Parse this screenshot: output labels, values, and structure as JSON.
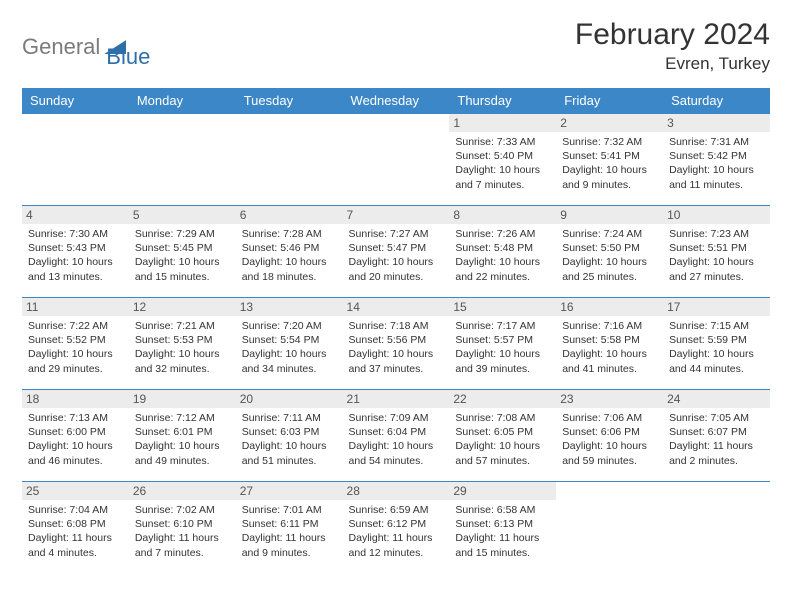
{
  "logo": {
    "part1": "General",
    "part2": "Blue"
  },
  "title": "February 2024",
  "location": "Evren, Turkey",
  "colors": {
    "header_bg": "#3c87c7",
    "header_text": "#ffffff",
    "daynum_bg": "#ececec",
    "border": "#3c87c7",
    "logo_gray": "#7b7b7b",
    "logo_blue": "#2f6fa8"
  },
  "dow": [
    "Sunday",
    "Monday",
    "Tuesday",
    "Wednesday",
    "Thursday",
    "Friday",
    "Saturday"
  ],
  "weeks": [
    [
      {
        "n": "",
        "sr": "",
        "ss": "",
        "dl": ""
      },
      {
        "n": "",
        "sr": "",
        "ss": "",
        "dl": ""
      },
      {
        "n": "",
        "sr": "",
        "ss": "",
        "dl": ""
      },
      {
        "n": "",
        "sr": "",
        "ss": "",
        "dl": ""
      },
      {
        "n": "1",
        "sr": "Sunrise: 7:33 AM",
        "ss": "Sunset: 5:40 PM",
        "dl": "Daylight: 10 hours and 7 minutes."
      },
      {
        "n": "2",
        "sr": "Sunrise: 7:32 AM",
        "ss": "Sunset: 5:41 PM",
        "dl": "Daylight: 10 hours and 9 minutes."
      },
      {
        "n": "3",
        "sr": "Sunrise: 7:31 AM",
        "ss": "Sunset: 5:42 PM",
        "dl": "Daylight: 10 hours and 11 minutes."
      }
    ],
    [
      {
        "n": "4",
        "sr": "Sunrise: 7:30 AM",
        "ss": "Sunset: 5:43 PM",
        "dl": "Daylight: 10 hours and 13 minutes."
      },
      {
        "n": "5",
        "sr": "Sunrise: 7:29 AM",
        "ss": "Sunset: 5:45 PM",
        "dl": "Daylight: 10 hours and 15 minutes."
      },
      {
        "n": "6",
        "sr": "Sunrise: 7:28 AM",
        "ss": "Sunset: 5:46 PM",
        "dl": "Daylight: 10 hours and 18 minutes."
      },
      {
        "n": "7",
        "sr": "Sunrise: 7:27 AM",
        "ss": "Sunset: 5:47 PM",
        "dl": "Daylight: 10 hours and 20 minutes."
      },
      {
        "n": "8",
        "sr": "Sunrise: 7:26 AM",
        "ss": "Sunset: 5:48 PM",
        "dl": "Daylight: 10 hours and 22 minutes."
      },
      {
        "n": "9",
        "sr": "Sunrise: 7:24 AM",
        "ss": "Sunset: 5:50 PM",
        "dl": "Daylight: 10 hours and 25 minutes."
      },
      {
        "n": "10",
        "sr": "Sunrise: 7:23 AM",
        "ss": "Sunset: 5:51 PM",
        "dl": "Daylight: 10 hours and 27 minutes."
      }
    ],
    [
      {
        "n": "11",
        "sr": "Sunrise: 7:22 AM",
        "ss": "Sunset: 5:52 PM",
        "dl": "Daylight: 10 hours and 29 minutes."
      },
      {
        "n": "12",
        "sr": "Sunrise: 7:21 AM",
        "ss": "Sunset: 5:53 PM",
        "dl": "Daylight: 10 hours and 32 minutes."
      },
      {
        "n": "13",
        "sr": "Sunrise: 7:20 AM",
        "ss": "Sunset: 5:54 PM",
        "dl": "Daylight: 10 hours and 34 minutes."
      },
      {
        "n": "14",
        "sr": "Sunrise: 7:18 AM",
        "ss": "Sunset: 5:56 PM",
        "dl": "Daylight: 10 hours and 37 minutes."
      },
      {
        "n": "15",
        "sr": "Sunrise: 7:17 AM",
        "ss": "Sunset: 5:57 PM",
        "dl": "Daylight: 10 hours and 39 minutes."
      },
      {
        "n": "16",
        "sr": "Sunrise: 7:16 AM",
        "ss": "Sunset: 5:58 PM",
        "dl": "Daylight: 10 hours and 41 minutes."
      },
      {
        "n": "17",
        "sr": "Sunrise: 7:15 AM",
        "ss": "Sunset: 5:59 PM",
        "dl": "Daylight: 10 hours and 44 minutes."
      }
    ],
    [
      {
        "n": "18",
        "sr": "Sunrise: 7:13 AM",
        "ss": "Sunset: 6:00 PM",
        "dl": "Daylight: 10 hours and 46 minutes."
      },
      {
        "n": "19",
        "sr": "Sunrise: 7:12 AM",
        "ss": "Sunset: 6:01 PM",
        "dl": "Daylight: 10 hours and 49 minutes."
      },
      {
        "n": "20",
        "sr": "Sunrise: 7:11 AM",
        "ss": "Sunset: 6:03 PM",
        "dl": "Daylight: 10 hours and 51 minutes."
      },
      {
        "n": "21",
        "sr": "Sunrise: 7:09 AM",
        "ss": "Sunset: 6:04 PM",
        "dl": "Daylight: 10 hours and 54 minutes."
      },
      {
        "n": "22",
        "sr": "Sunrise: 7:08 AM",
        "ss": "Sunset: 6:05 PM",
        "dl": "Daylight: 10 hours and 57 minutes."
      },
      {
        "n": "23",
        "sr": "Sunrise: 7:06 AM",
        "ss": "Sunset: 6:06 PM",
        "dl": "Daylight: 10 hours and 59 minutes."
      },
      {
        "n": "24",
        "sr": "Sunrise: 7:05 AM",
        "ss": "Sunset: 6:07 PM",
        "dl": "Daylight: 11 hours and 2 minutes."
      }
    ],
    [
      {
        "n": "25",
        "sr": "Sunrise: 7:04 AM",
        "ss": "Sunset: 6:08 PM",
        "dl": "Daylight: 11 hours and 4 minutes."
      },
      {
        "n": "26",
        "sr": "Sunrise: 7:02 AM",
        "ss": "Sunset: 6:10 PM",
        "dl": "Daylight: 11 hours and 7 minutes."
      },
      {
        "n": "27",
        "sr": "Sunrise: 7:01 AM",
        "ss": "Sunset: 6:11 PM",
        "dl": "Daylight: 11 hours and 9 minutes."
      },
      {
        "n": "28",
        "sr": "Sunrise: 6:59 AM",
        "ss": "Sunset: 6:12 PM",
        "dl": "Daylight: 11 hours and 12 minutes."
      },
      {
        "n": "29",
        "sr": "Sunrise: 6:58 AM",
        "ss": "Sunset: 6:13 PM",
        "dl": "Daylight: 11 hours and 15 minutes."
      },
      {
        "n": "",
        "sr": "",
        "ss": "",
        "dl": ""
      },
      {
        "n": "",
        "sr": "",
        "ss": "",
        "dl": ""
      }
    ]
  ]
}
